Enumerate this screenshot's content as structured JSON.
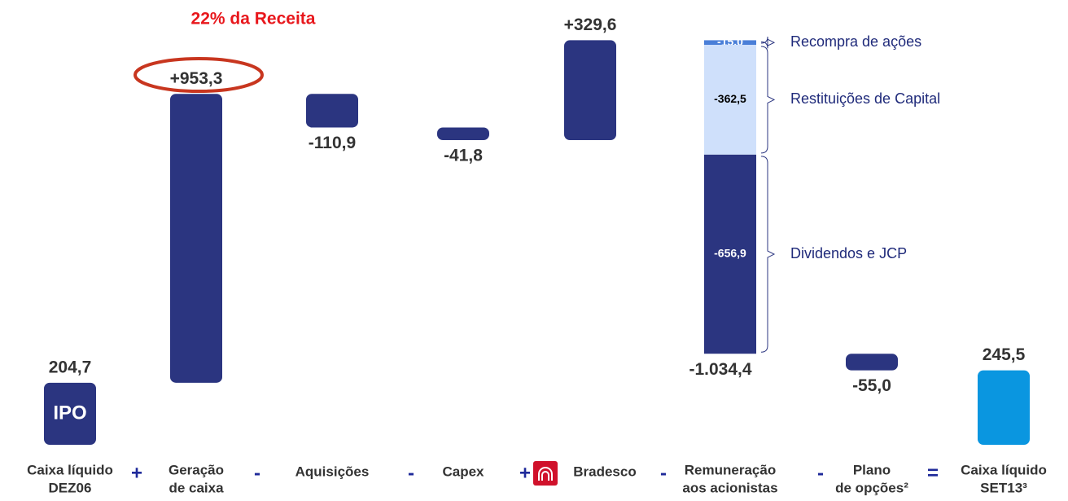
{
  "chart_data": {
    "type": "waterfall",
    "annotation": "22% da Receita",
    "first_bar_text": "IPO",
    "categories": [
      [
        "Caixa líquido",
        "DEZ06"
      ],
      [
        "Geração",
        "de caixa"
      ],
      [
        "Aquisições"
      ],
      [
        "Capex"
      ],
      [
        "Bradesco"
      ],
      [
        "Remuneração",
        "aos acionistas"
      ],
      [
        "Plano",
        "de opções²"
      ],
      [
        "Caixa líquido",
        "SET13³"
      ]
    ],
    "operators": [
      "+",
      "-",
      "-",
      "+",
      "-",
      "-",
      "="
    ],
    "measure": [
      "absolute",
      "relative",
      "relative",
      "relative",
      "relative",
      "relative",
      "relative",
      "total"
    ],
    "values": [
      204.7,
      953.3,
      -110.9,
      -41.8,
      329.6,
      -1034.4,
      -55.0,
      245.5
    ],
    "value_labels": [
      "204,7",
      "+953,3",
      "-110,9",
      "-41,8",
      "+329,6",
      "-1.034,4",
      "-55,0",
      "245,5"
    ],
    "colors": [
      "#2b3580",
      "#2b3580",
      "#2b3580",
      "#2b3580",
      "#2b3580",
      "#2b3580",
      "#2b3580",
      "#0a96e0"
    ],
    "segments_of": 5,
    "segments": [
      {
        "name": "Recompra de ações",
        "value": -15.0,
        "label": "-15,0",
        "color": "#4a7fd8"
      },
      {
        "name": "Restituições de Capital",
        "value": -362.5,
        "label": "-362,5",
        "color": "#cfe0fb"
      },
      {
        "name": "Dividendos e JCP",
        "value": -656.9,
        "label": "-656,9",
        "color": "#2b3580"
      }
    ]
  }
}
